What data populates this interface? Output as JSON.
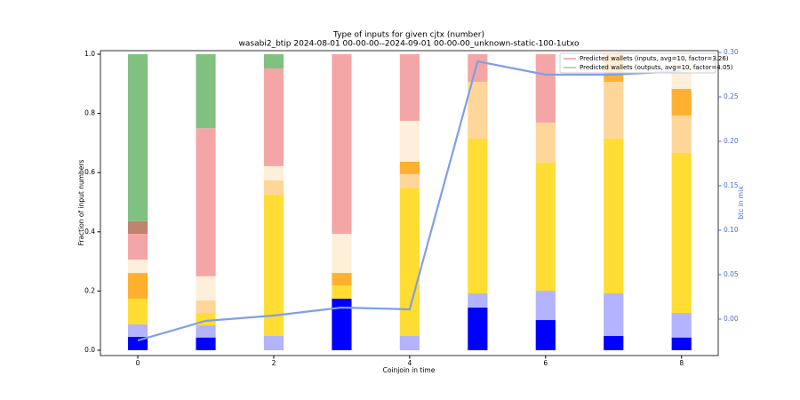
{
  "chart_data": {
    "type": "stacked_bar_line",
    "title": "Type of inputs for given cjtx (number)",
    "subtitle": "wasabi2_btip 2024-08-01 00-00-00--2024-09-01 00-00-00_unknown-static-100-1utxo",
    "x_label": "Coinjoin in time",
    "y_label": "Fraction of input numbers",
    "y2_label": "btc in mix",
    "x": [
      0,
      1,
      2,
      3,
      4,
      5,
      6,
      7,
      8
    ],
    "xlim": [
      -0.55,
      8.54
    ],
    "xticks": [
      0,
      2,
      4,
      6,
      8
    ],
    "ylim": [
      -0.018,
      1.012
    ],
    "yticks": [
      {
        "value": 0,
        "label": "0.0"
      },
      0.2,
      0.4,
      0.6,
      0.8,
      {
        "value": 1,
        "label": "1.0"
      }
    ],
    "y2lim": [
      -0.041,
      0.302
    ],
    "y2ticks": [
      {
        "value": 0,
        "label": "0.00"
      },
      0.05,
      {
        "value": 0.1,
        "label": "0.10"
      },
      0.15,
      {
        "value": 0.2,
        "label": "0.20"
      },
      0.25,
      {
        "value": 0.3,
        "label": "0.30"
      }
    ],
    "series": [
      {
        "color": "#0000ff",
        "values": [
          0.045,
          0.043,
          0,
          0.174,
          0,
          0.144,
          0.102,
          0.048,
          0.043
        ]
      },
      {
        "color": "#b3b3ff",
        "values": [
          0.042,
          0.041,
          0.048,
          0,
          0.048,
          0.048,
          0.099,
          0.144,
          0.083
        ]
      },
      {
        "color": "#ffdd33",
        "values": [
          0.087,
          0.042,
          0.477,
          0.045,
          0.5,
          0.523,
          0.433,
          0.523,
          0.541
        ]
      },
      {
        "color": "#ffd699",
        "values": [
          0,
          0.042,
          0.049,
          0,
          0.047,
          0.192,
          0.135,
          0.192,
          0.126
        ]
      },
      {
        "color": "#ffb030",
        "values": [
          0.087,
          0,
          0,
          0.042,
          0.042,
          0,
          0,
          0.093,
          0.09
        ]
      },
      {
        "color": "#fdefd9",
        "values": [
          0.045,
          0.082,
          0.048,
          0.132,
          0.138,
          0,
          0,
          0,
          0.117
        ]
      },
      {
        "color": "#f4a6a6",
        "values": [
          0.087,
          0.5,
          0.33,
          0.607,
          0.225,
          0.093,
          0.231,
          0,
          0
        ]
      },
      {
        "color": "#c0836d",
        "values": [
          0.043,
          0,
          0,
          0,
          0,
          0,
          0,
          0,
          0
        ]
      },
      {
        "color": "#80c080",
        "values": [
          0.564,
          0.25,
          0.048,
          0,
          0,
          0,
          0,
          0,
          0
        ]
      },
      {
        "color": "#7f9fe6",
        "axis": "y2",
        "values": [
          -0.024,
          -0.002,
          0.004,
          0.013,
          0.011,
          0.29,
          0.275,
          0.275,
          0.279
        ]
      }
    ],
    "legend": [
      {
        "name": "Predicted wallets (inputs, avg=10, factor=3.26)",
        "color": "#f08080"
      },
      {
        "name": "Predicted wallets (outputs, avg=10, factor=4.05)",
        "color": "#80c080"
      }
    ]
  }
}
